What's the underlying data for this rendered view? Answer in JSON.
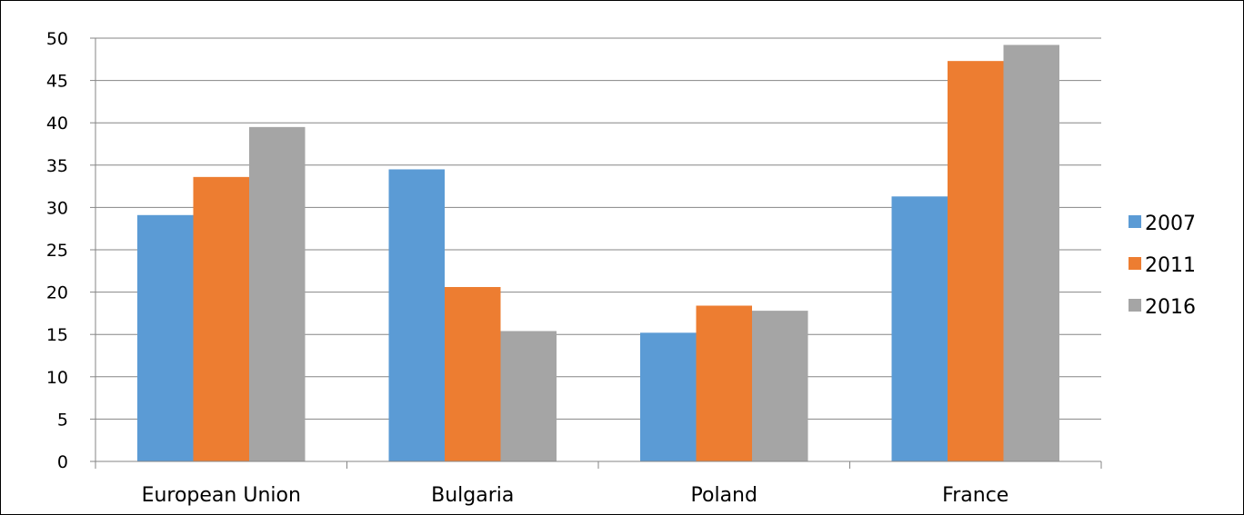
{
  "chart_data": {
    "type": "bar",
    "title": "",
    "xlabel": "",
    "ylabel": "",
    "categories": [
      "European Union",
      "Bulgaria",
      "Poland",
      "France"
    ],
    "series": [
      {
        "name": "2007",
        "color": "#5B9BD5",
        "values": [
          29.1,
          34.5,
          15.2,
          31.3
        ]
      },
      {
        "name": "2011",
        "color": "#ED7D31",
        "values": [
          33.6,
          20.6,
          18.4,
          47.3
        ]
      },
      {
        "name": "2016",
        "color": "#A5A5A5",
        "values": [
          39.5,
          15.4,
          17.8,
          49.2
        ]
      }
    ],
    "ylim": [
      0,
      50
    ],
    "yticks": [
      0,
      5,
      10,
      15,
      20,
      25,
      30,
      35,
      40,
      45,
      50
    ],
    "grid": true,
    "legend_position": "right"
  }
}
